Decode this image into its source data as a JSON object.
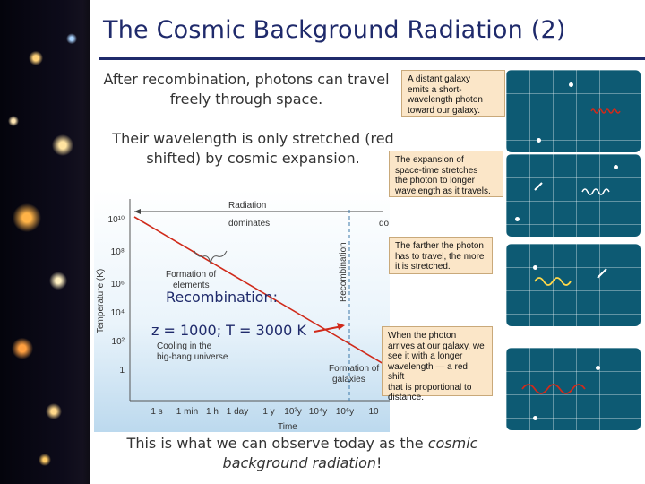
{
  "slide": {
    "title": "The Cosmic Background Radiation (2)",
    "para1_line1": "After recombination, photons can travel",
    "para1_line2": "freely through space.",
    "para2_line1": "Their wavelength is only stretched (red",
    "para2_line2": "shifted) by cosmic expansion.",
    "bottom_line1_a": "This is what we can observe today as the ",
    "bottom_line1_b": "cosmic",
    "bottom_line2_a": "background radiation",
    "bottom_line2_b": "!"
  },
  "chart": {
    "radiation_label": "Radiation",
    "dominates_label": "dominates",
    "dominates_label_2": "do",
    "recombination_axis_label": "Recombination",
    "formation_elements_1": "Formation of",
    "formation_elements_2": "elements",
    "recombination_overlay": "Recombination:",
    "z_t_overlay": "z = 1000; T = 3000 K",
    "cooling_1": "Cooling in the",
    "cooling_2": "big-bang universe",
    "formation_galaxies_1": "Formation of",
    "formation_galaxies_2": "galaxies",
    "ylabel": "Temperature (K)",
    "xlabel": "Time",
    "yticks": [
      "10¹⁰",
      "10⁸",
      "10⁶",
      "10⁴",
      "10²",
      "1"
    ],
    "xticks": [
      "1 s",
      "1 min",
      "1 h",
      "1 day",
      "1 y",
      "10²y",
      "10⁴y",
      "10⁶y",
      "10"
    ]
  },
  "callouts": {
    "c1_line1": "A distant galaxy",
    "c1_line2": "emits a short-",
    "c1_line3": "wavelength photon",
    "c1_line4": "toward our galaxy.",
    "c2_line1": "The expansion of",
    "c2_line2": "space-time stretches",
    "c2_line3": "the photon to longer",
    "c2_line4": "wavelength as it travels.",
    "c3_line1": "The farther the photon",
    "c3_line2": "has to travel, the more",
    "c3_line3": "it is stretched.",
    "c4_line1": "When the photon",
    "c4_line2": "arrives at our galaxy, we",
    "c4_line3": "see it with a longer",
    "c4_line4": "wavelength — a red shift",
    "c4_line5": "that is proportional to",
    "c4_line6": "distance."
  },
  "colors": {
    "title": "#1f2a6b",
    "line": "#d02a1a",
    "panel": "#0d5a73",
    "callout": "#fbe6c8"
  }
}
